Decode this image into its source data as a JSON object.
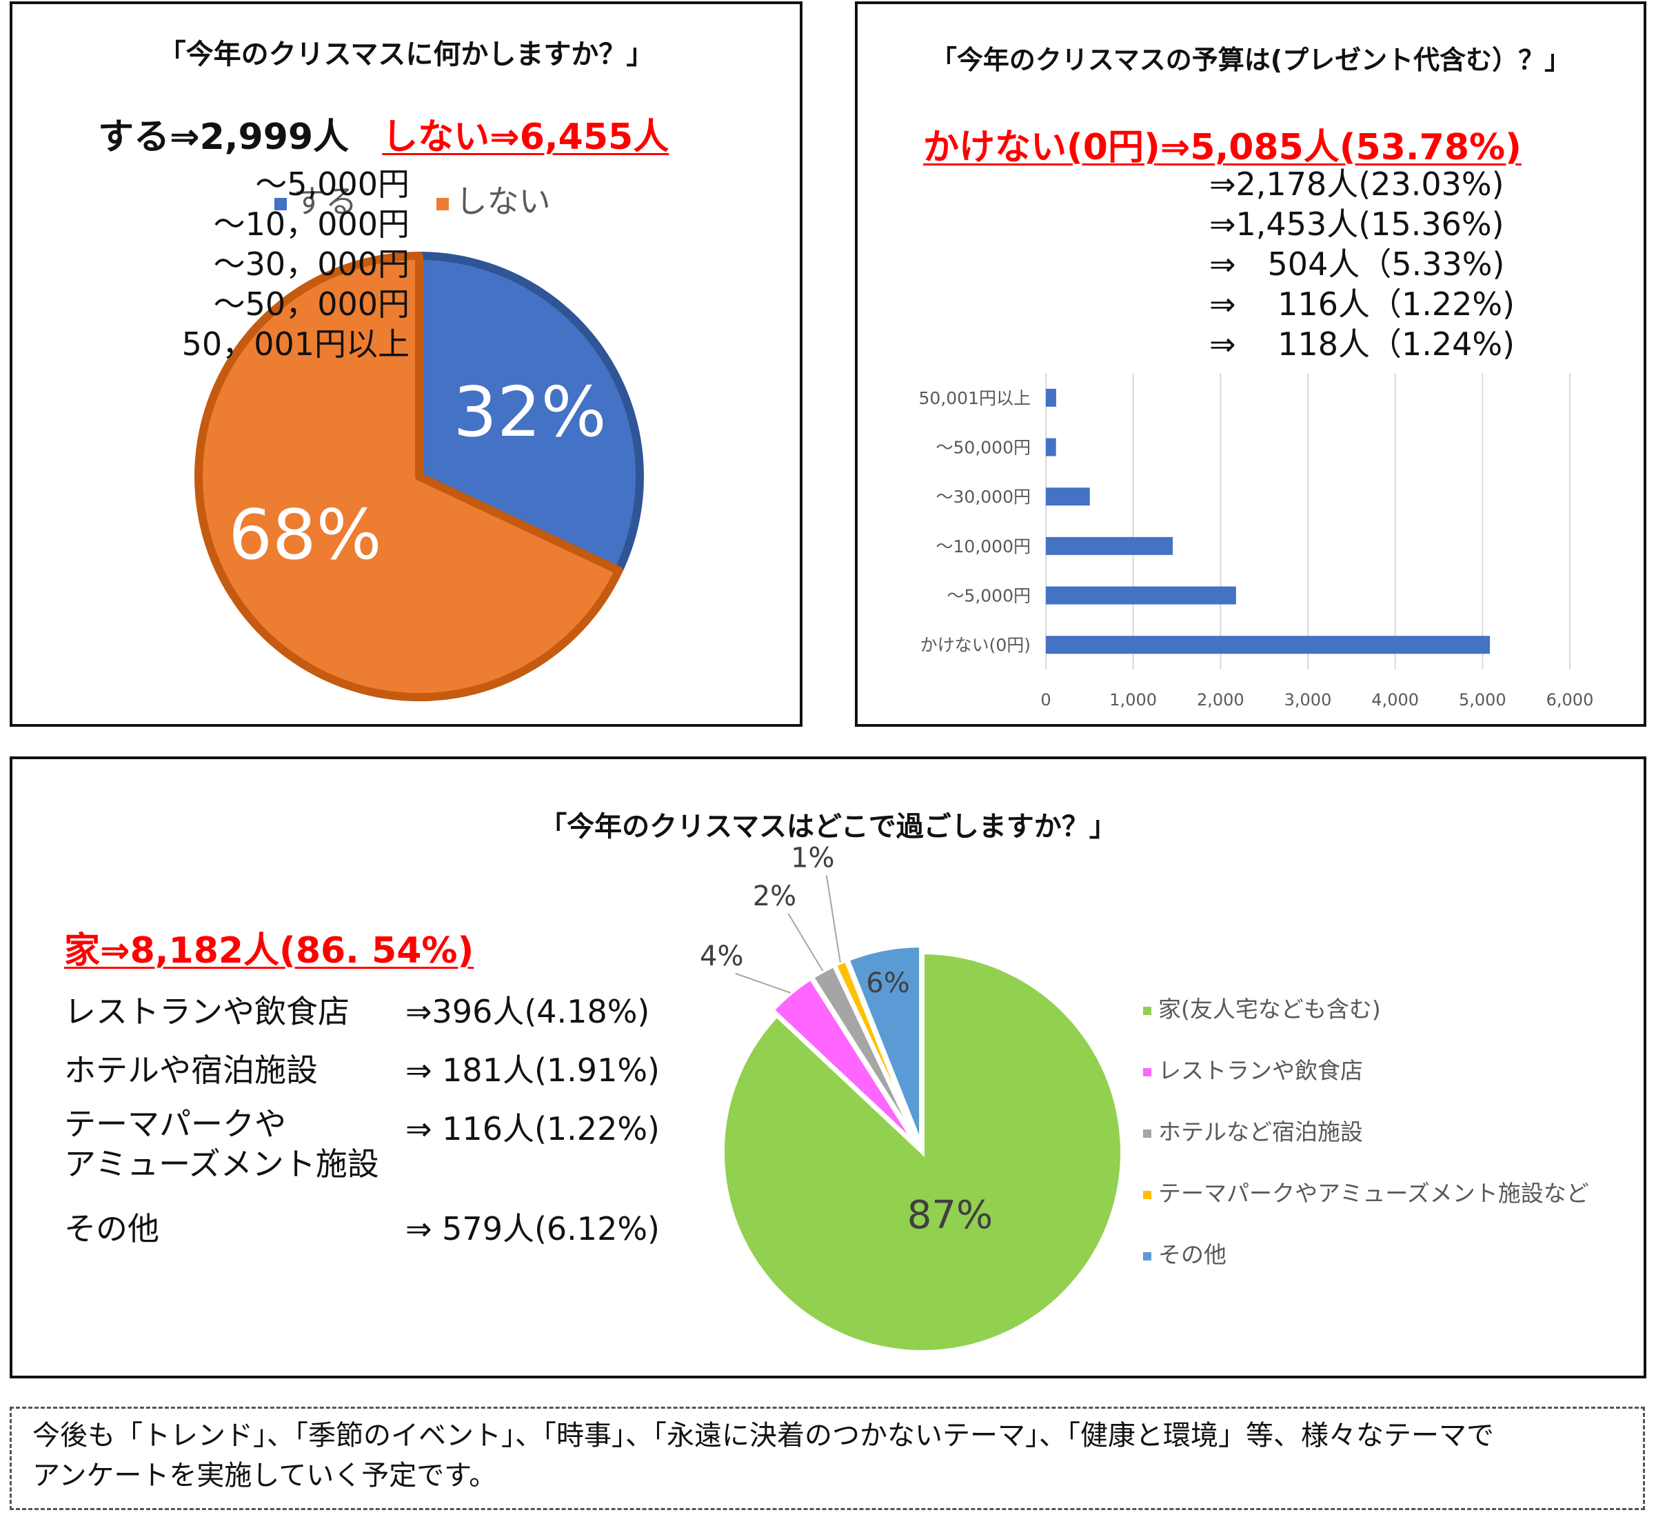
{
  "panel1": {
    "title": "「今年のクリスマスに何かしますか？」",
    "summary_yes": "する⇒2,999人",
    "summary_no": "しない⇒6,455人",
    "legend": [
      {
        "label": "する",
        "color": "#4472c4"
      },
      {
        "label": "しない",
        "color": "#ed7d31"
      }
    ]
  },
  "panel2": {
    "title": "「今年のクリスマスの予算は(プレゼント代含む）？」",
    "highlight": "かけない(0円)⇒5,085人(53.78%)",
    "rows": [
      {
        "label": "～5,000円",
        "value": "⇒2,178人(23.03%)"
      },
      {
        "label": "～10，000円",
        "value": "⇒1,453人(15.36%)"
      },
      {
        "label": "～30，000円",
        "value": "⇒　504人（5.33%)"
      },
      {
        "label": "～50，000円",
        "value": "⇒　 116人（1.22%)"
      },
      {
        "label": "50，001円以上",
        "value": "⇒　 118人（1.24%)"
      }
    ]
  },
  "panel3": {
    "title": "「今年のクリスマスはどこで過ごしますか？」",
    "highlight": "家⇒8,182人(86. 54%)",
    "rows": [
      {
        "label": "レストランや飲食店",
        "value": "⇒396人(4.18%)"
      },
      {
        "label": "ホテルや宿泊施設",
        "value": "⇒ 181人(1.91%)"
      },
      {
        "label": "テーマパークや",
        "label2": "アミューズメント施設",
        "value": "⇒ 116人(1.22%)"
      },
      {
        "label": "その他",
        "value": "⇒ 579人(6.12%)"
      }
    ]
  },
  "footer": {
    "line1": "今後も「トレンド」、「季節のイベント」、「時事」、「永遠に決着のつかないテーマ」、「健康と環境」等、様々なテーマで",
    "line2": "アンケートを実施していく予定です。"
  },
  "chart_data": [
    {
      "type": "pie",
      "categories": [
        "する",
        "しない"
      ],
      "values": [
        32,
        68
      ],
      "data_labels": [
        "32%",
        "68%"
      ],
      "colors": [
        "#4472c4",
        "#ed7d31"
      ],
      "legend": "top"
    },
    {
      "type": "bar",
      "orientation": "horizontal",
      "categories": [
        "かけない(0円)",
        "～5,000円",
        "～10,000円",
        "～30,000円",
        "～50,000円",
        "50,001円以上"
      ],
      "values": [
        5085,
        2178,
        1453,
        504,
        116,
        118
      ],
      "xlim": [
        0,
        6000
      ],
      "xticks": [
        "0",
        "1,000",
        "2,000",
        "3,000",
        "4,000",
        "5,000",
        "6,000"
      ],
      "grid": true,
      "color": "#4472c4"
    },
    {
      "type": "pie",
      "categories": [
        "家(友人宅なども含む)",
        "レストランや飲食店",
        "ホテルなど宿泊施設",
        "テーマパークやアミューズメント施設など",
        "その他"
      ],
      "values": [
        87,
        4,
        2,
        1,
        6
      ],
      "data_labels": [
        "87%",
        "4%",
        "2%",
        "1%",
        "6%"
      ],
      "colors": [
        "#92d050",
        "#ff66ff",
        "#a5a5a5",
        "#ffc000",
        "#5b9bd5"
      ],
      "legend": "right"
    }
  ]
}
